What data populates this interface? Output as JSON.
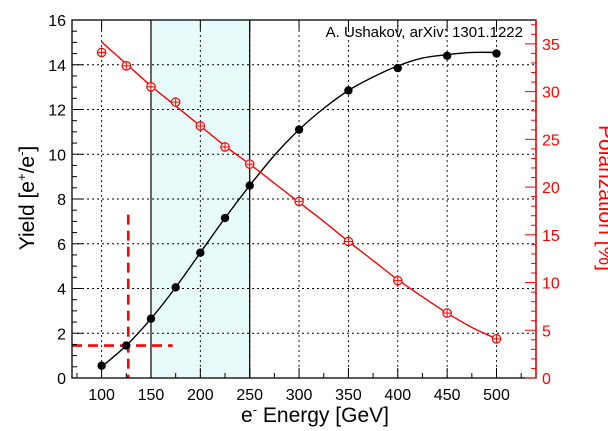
{
  "chart_data": {
    "type": "line",
    "annotation": "A. Ushakov, arXiv: 1301.1222",
    "xlabel": {
      "base": "e",
      "sup": "-",
      "rest": " Energy [GeV]"
    },
    "ylabel_left": {
      "pre": "Yield [e",
      "sup1": "+",
      "mid": "/e",
      "sup2": "-",
      "post": "]"
    },
    "ylabel_right": "Polarization [%]",
    "xlim": [
      70,
      540
    ],
    "ylim_left": [
      0,
      16
    ],
    "ylim_right": [
      0,
      37.5
    ],
    "xticks": [
      100,
      150,
      200,
      250,
      300,
      350,
      400,
      450,
      500
    ],
    "yticks_left": [
      0,
      2,
      4,
      6,
      8,
      10,
      12,
      14,
      16
    ],
    "yticks_right": [
      0,
      5,
      10,
      15,
      20,
      25,
      30,
      35
    ],
    "grid": true,
    "shaded_band": {
      "x": [
        150,
        250
      ],
      "color": "#e8fbfb"
    },
    "colors": {
      "yield": "#000000",
      "polarization": "#ff0000",
      "axis_right": "#ff0000"
    },
    "series": [
      {
        "axis": "left",
        "marker": "filled-circle",
        "x": [
          100,
          125,
          150,
          175,
          200,
          225,
          250,
          300,
          350,
          400,
          450,
          500
        ],
        "y": [
          0.55,
          1.45,
          2.65,
          4.05,
          5.6,
          7.15,
          8.6,
          11.1,
          12.85,
          13.85,
          14.4,
          14.5
        ],
        "fit_x": [
          100,
          125,
          150,
          175,
          200,
          225,
          250,
          275,
          300,
          325,
          350,
          375,
          400,
          425,
          450,
          475,
          500
        ],
        "fit_y": [
          0.5,
          1.45,
          2.65,
          4.05,
          5.6,
          7.15,
          8.6,
          9.95,
          11.1,
          12.05,
          12.85,
          13.45,
          13.95,
          14.3,
          14.45,
          14.55,
          14.55
        ]
      },
      {
        "axis": "right",
        "marker": "open-circle-cross",
        "x": [
          100,
          125,
          150,
          175,
          200,
          225,
          250,
          300,
          350,
          400,
          450,
          500
        ],
        "y": [
          34.1,
          32.7,
          30.5,
          28.9,
          26.4,
          24.2,
          22.4,
          18.5,
          14.3,
          10.2,
          6.8,
          4.1
        ],
        "fit_x": [
          100,
          125,
          150,
          175,
          200,
          225,
          250,
          275,
          300,
          325,
          350,
          375,
          400,
          425,
          450,
          475,
          500
        ],
        "fit_y": [
          35.2,
          32.9,
          30.6,
          28.5,
          26.4,
          24.3,
          22.4,
          20.4,
          18.4,
          16.4,
          14.3,
          12.3,
          10.3,
          8.5,
          6.8,
          5.3,
          4.1
        ]
      }
    ],
    "reference_lines": {
      "x": 127,
      "y_left": 1.45
    }
  }
}
